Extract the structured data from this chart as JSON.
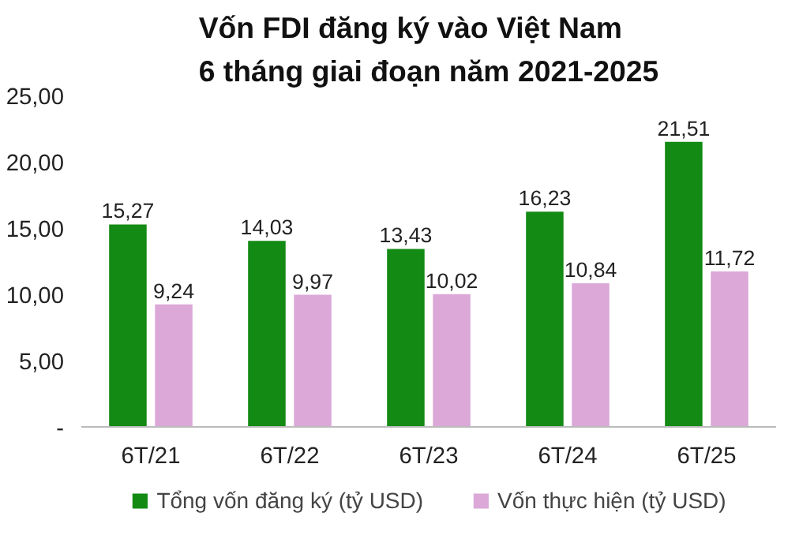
{
  "chart_data": {
    "type": "bar",
    "title": "Vốn FDI đăng ký vào Việt Nam\n6 tháng giai đoạn năm 2021-2025",
    "categories": [
      "6T/21",
      "6T/22",
      "6T/23",
      "6T/24",
      "6T/25"
    ],
    "series": [
      {
        "name": "Tổng vốn đăng ký (tỷ USD)",
        "color": "#138a13",
        "values": [
          15.27,
          14.03,
          13.43,
          16.23,
          21.51
        ],
        "value_labels": [
          "15,27",
          "14,03",
          "13,43",
          "16,23",
          "21,51"
        ]
      },
      {
        "name": "Vốn thực hiện (tỷ USD)",
        "color": "#dba8d8",
        "values": [
          9.24,
          9.97,
          10.02,
          10.84,
          11.72
        ],
        "value_labels": [
          "9,24",
          "9,97",
          "10,02",
          "10,84",
          "11,72"
        ]
      }
    ],
    "ylim": [
      0,
      25
    ],
    "yticks": [
      {
        "value": 0,
        "label": "-"
      },
      {
        "value": 5,
        "label": "5,00"
      },
      {
        "value": 10,
        "label": "10,00"
      },
      {
        "value": 15,
        "label": "15,00"
      },
      {
        "value": 20,
        "label": "20,00"
      },
      {
        "value": 25,
        "label": "25,00"
      }
    ],
    "grid": false,
    "legend": "bottom"
  }
}
